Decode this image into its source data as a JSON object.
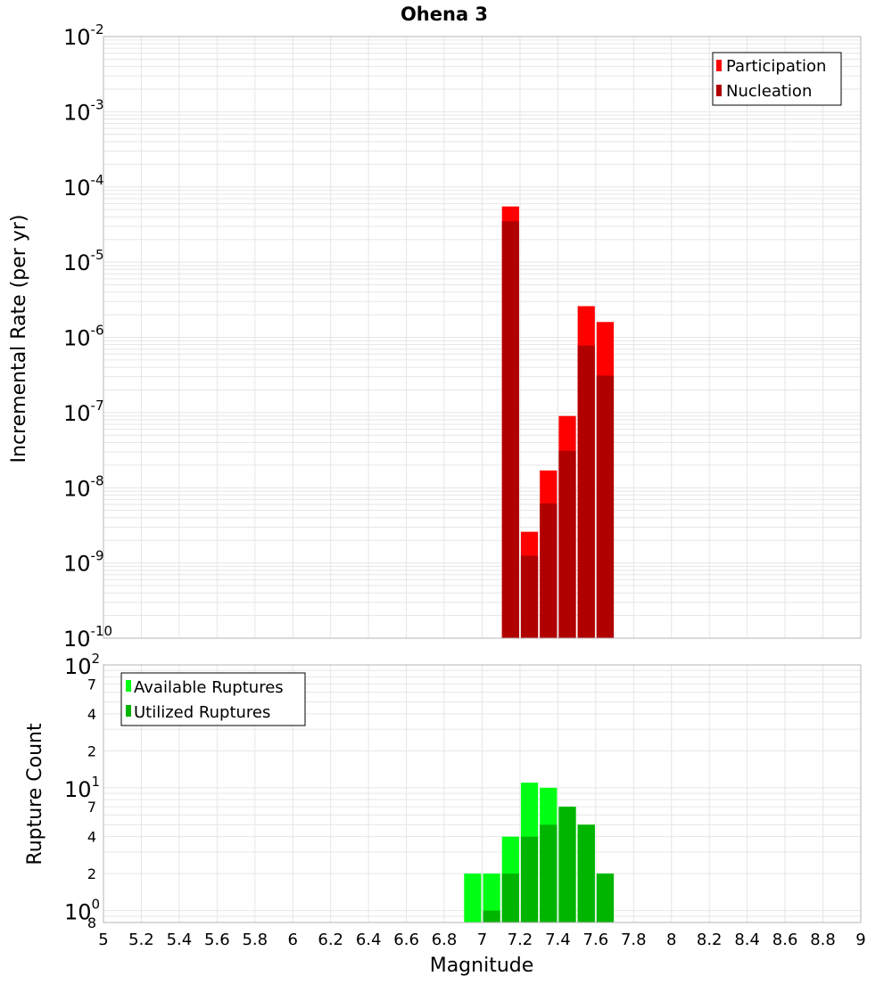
{
  "title": "Ohena 3",
  "colors": {
    "participation": "#ff0000",
    "nucleation": "#b00000",
    "available": "#00ff14",
    "utilized": "#00b400",
    "grid": "#e6e6e6",
    "frame": "#b4b4b4"
  },
  "chart_data": [
    {
      "type": "bar",
      "title": "Ohena 3",
      "xlabel": "Magnitude",
      "ylabel": "Incremental Rate (per yr)",
      "y_scale": "log",
      "xlim": [
        5,
        9
      ],
      "ylim": [
        1e-10,
        0.01
      ],
      "y_tick_labels": [
        {
          "base": "10",
          "exp": "-2"
        },
        {
          "base": "10",
          "exp": "-3"
        },
        {
          "base": "10",
          "exp": "-4"
        },
        {
          "base": "10",
          "exp": "-5"
        },
        {
          "base": "10",
          "exp": "-6"
        },
        {
          "base": "10",
          "exp": "-7"
        },
        {
          "base": "10",
          "exp": "-8"
        },
        {
          "base": "10",
          "exp": "-9"
        },
        {
          "base": "10",
          "exp": "-10"
        }
      ],
      "legend": {
        "position": "top-right",
        "entries": [
          "Participation",
          "Nucleation"
        ]
      },
      "x": [
        7.15,
        7.25,
        7.35,
        7.45,
        7.55,
        7.65
      ],
      "series": [
        {
          "name": "Participation",
          "values": [
            5.5e-05,
            2.6e-09,
            1.7e-08,
            9e-08,
            2.6e-06,
            1.6e-06
          ]
        },
        {
          "name": "Nucleation",
          "values": [
            3.5e-05,
            1.25e-09,
            6.2e-09,
            3.1e-08,
            7.8e-07,
            3.1e-07
          ]
        }
      ]
    },
    {
      "type": "bar",
      "xlabel": "Magnitude",
      "ylabel": "Rupture Count",
      "y_scale": "log",
      "xlim": [
        5,
        9
      ],
      "ylim": [
        0.8,
        100
      ],
      "y_tick_labels": [
        "10²",
        "7",
        "4",
        "2",
        "10¹",
        "7",
        "4",
        "2",
        "10⁰",
        "8"
      ],
      "legend": {
        "position": "top-left",
        "entries": [
          "Available Ruptures",
          "Utilized Ruptures"
        ]
      },
      "x": [
        6.95,
        7.05,
        7.15,
        7.25,
        7.35,
        7.45,
        7.55,
        7.65
      ],
      "series": [
        {
          "name": "Available Ruptures",
          "values": [
            2,
            2,
            4,
            11,
            10,
            7,
            5,
            2
          ]
        },
        {
          "name": "Utilized Ruptures",
          "values": [
            0,
            1,
            2,
            4,
            5,
            7,
            5,
            2
          ]
        }
      ],
      "x_ticks": [
        "5",
        "5.2",
        "5.4",
        "5.6",
        "5.8",
        "6",
        "6.2",
        "6.4",
        "6.6",
        "6.8",
        "7",
        "7.2",
        "7.4",
        "7.6",
        "7.8",
        "8",
        "8.2",
        "8.4",
        "8.6",
        "8.8",
        "9"
      ]
    }
  ]
}
